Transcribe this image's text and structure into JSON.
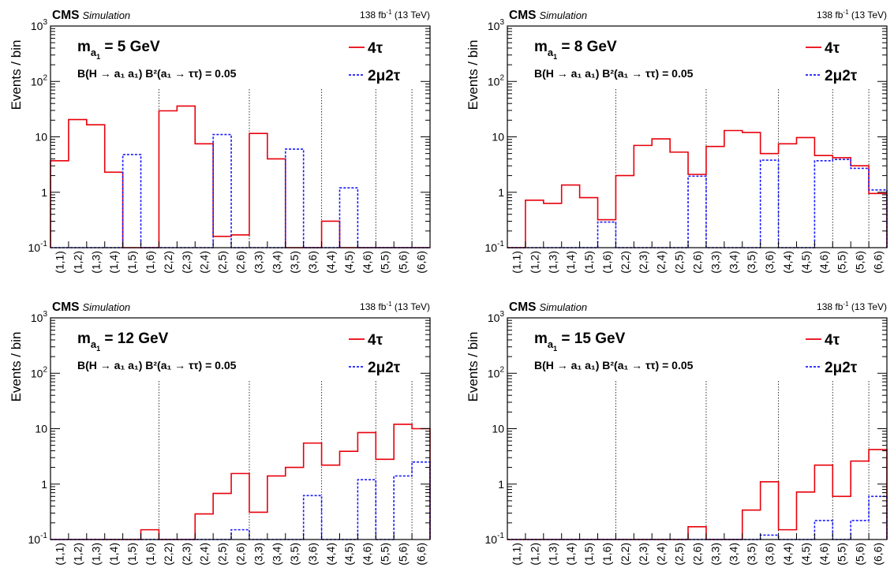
{
  "categories": [
    "(1,1)",
    "(1,2)",
    "(1,3)",
    "(1,4)",
    "(1,5)",
    "(1,6)",
    "(2,2)",
    "(2,3)",
    "(2,4)",
    "(2,5)",
    "(2,6)",
    "(3,3)",
    "(3,4)",
    "(3,5)",
    "(3,6)",
    "(4,4)",
    "(4,5)",
    "(4,6)",
    "(5,5)",
    "(5,6)",
    "(6,6)"
  ],
  "chart_data": [
    {
      "type": "histogram",
      "header": {
        "experiment": "CMS",
        "tag": "Simulation",
        "lumi": "138 fb",
        "lumi_sup": "-1",
        "energy": " (13 TeV)"
      },
      "mass_label": {
        "m": "m",
        "sub_a": "a",
        "sub_1": "1",
        "value": " = 5 GeV"
      },
      "br_label": "B(H → a₁ a₁) B²(a₁ → ττ) = 0.05",
      "ylabel": "Events / bin",
      "y_scale": "log",
      "ylim": [
        0.1,
        1000
      ],
      "yticks": [
        "10⁻¹",
        "1",
        "10",
        "10²",
        "10³"
      ],
      "legend": {
        "placement": "top-right"
      },
      "separators_after": [
        "(1,6)",
        "(2,6)",
        "(3,6)",
        "(4,6)",
        "(5,6)"
      ],
      "series": [
        {
          "name": "4τ",
          "color": "#e8000b",
          "style": "solid",
          "values": [
            3.7,
            20.5,
            16.5,
            2.3,
            0.1,
            0.1,
            29.5,
            36,
            7.5,
            0.16,
            0.17,
            11.5,
            4.0,
            0.1,
            0.1,
            0.3,
            0.1,
            0.1,
            0.1,
            0.1,
            0.1
          ]
        },
        {
          "name": "2μ2τ",
          "color": "#1a1aff",
          "style": "dashed",
          "values": [
            0.1,
            0.1,
            0.1,
            0.1,
            4.8,
            0.1,
            0.1,
            0.1,
            0.1,
            11.0,
            0.1,
            0.1,
            0.1,
            6.0,
            0.1,
            0.1,
            1.2,
            0.1,
            0.1,
            0.1,
            0.1
          ]
        }
      ]
    },
    {
      "type": "histogram",
      "header": {
        "experiment": "CMS",
        "tag": "Simulation",
        "lumi": "138 fb",
        "lumi_sup": "-1",
        "energy": " (13 TeV)"
      },
      "mass_label": {
        "m": "m",
        "sub_a": "a",
        "sub_1": "1",
        "value": " = 8 GeV"
      },
      "br_label": "B(H → a₁ a₁) B²(a₁ → ττ) = 0.05",
      "ylabel": "Events / bin",
      "y_scale": "log",
      "ylim": [
        0.1,
        1000
      ],
      "yticks": [
        "10⁻¹",
        "1",
        "10",
        "10²",
        "10³"
      ],
      "legend": {
        "placement": "top-right"
      },
      "separators_after": [
        "(1,6)",
        "(2,6)",
        "(3,6)",
        "(4,6)",
        "(5,6)"
      ],
      "series": [
        {
          "name": "4τ",
          "color": "#e8000b",
          "style": "solid",
          "values": [
            0.1,
            0.72,
            0.63,
            1.35,
            0.8,
            0.32,
            2.0,
            7.0,
            9.2,
            5.3,
            2.1,
            6.7,
            13.0,
            12.0,
            5.0,
            7.5,
            9.7,
            4.6,
            4.2,
            3.0,
            0.95
          ]
        },
        {
          "name": "2μ2τ",
          "color": "#1a1aff",
          "style": "dashed",
          "values": [
            0.1,
            0.1,
            0.1,
            0.1,
            0.1,
            0.29,
            0.1,
            0.1,
            0.1,
            0.1,
            1.95,
            0.1,
            0.1,
            0.1,
            3.8,
            0.1,
            0.1,
            3.7,
            3.9,
            2.7,
            1.1
          ]
        }
      ]
    },
    {
      "type": "histogram",
      "header": {
        "experiment": "CMS",
        "tag": "Simulation",
        "lumi": "138 fb",
        "lumi_sup": "-1",
        "energy": " (13 TeV)"
      },
      "mass_label": {
        "m": "m",
        "sub_a": "a",
        "sub_1": "1",
        "value": " = 12 GeV"
      },
      "br_label": "B(H → a₁ a₁) B²(a₁ → ττ) = 0.05",
      "ylabel": "Events / bin",
      "y_scale": "log",
      "ylim": [
        0.1,
        1000
      ],
      "yticks": [
        "10⁻¹",
        "1",
        "10",
        "10²",
        "10³"
      ],
      "legend": {
        "placement": "top-right"
      },
      "separators_after": [
        "(1,6)",
        "(2,6)",
        "(3,6)",
        "(4,6)",
        "(5,6)"
      ],
      "series": [
        {
          "name": "4τ",
          "color": "#e8000b",
          "style": "solid",
          "values": [
            0.1,
            0.1,
            0.1,
            0.1,
            0.1,
            0.15,
            0.1,
            0.1,
            0.29,
            0.68,
            1.55,
            0.31,
            1.4,
            2.0,
            5.5,
            2.2,
            3.9,
            8.5,
            2.8,
            12.0,
            10.0
          ]
        },
        {
          "name": "2μ2τ",
          "color": "#1a1aff",
          "style": "dashed",
          "values": [
            0.1,
            0.1,
            0.1,
            0.1,
            0.1,
            0.1,
            0.1,
            0.1,
            0.1,
            0.1,
            0.15,
            0.1,
            0.1,
            0.1,
            0.62,
            0.1,
            0.1,
            1.2,
            0.1,
            1.4,
            2.5
          ]
        }
      ]
    },
    {
      "type": "histogram",
      "header": {
        "experiment": "CMS",
        "tag": "Simulation",
        "lumi": "138 fb",
        "lumi_sup": "-1",
        "energy": " (13 TeV)"
      },
      "mass_label": {
        "m": "m",
        "sub_a": "a",
        "sub_1": "1",
        "value": " = 15 GeV"
      },
      "br_label": "B(H → a₁ a₁) B²(a₁ → ττ) = 0.05",
      "ylabel": "Events / bin",
      "y_scale": "log",
      "ylim": [
        0.1,
        1000
      ],
      "yticks": [
        "10⁻¹",
        "1",
        "10",
        "10²",
        "10³"
      ],
      "legend": {
        "placement": "top-right"
      },
      "separators_after": [
        "(1,6)",
        "(2,6)",
        "(3,6)",
        "(4,6)",
        "(5,6)"
      ],
      "series": [
        {
          "name": "4τ",
          "color": "#e8000b",
          "style": "solid",
          "values": [
            0.1,
            0.1,
            0.1,
            0.1,
            0.1,
            0.1,
            0.1,
            0.1,
            0.1,
            0.1,
            0.17,
            0.1,
            0.1,
            0.34,
            1.1,
            0.15,
            0.72,
            2.2,
            0.6,
            2.6,
            4.2
          ]
        },
        {
          "name": "2μ2τ",
          "color": "#1a1aff",
          "style": "dashed",
          "values": [
            0.1,
            0.1,
            0.1,
            0.1,
            0.1,
            0.1,
            0.1,
            0.1,
            0.1,
            0.1,
            0.1,
            0.1,
            0.1,
            0.1,
            0.12,
            0.1,
            0.1,
            0.22,
            0.1,
            0.22,
            0.6
          ]
        }
      ]
    }
  ]
}
